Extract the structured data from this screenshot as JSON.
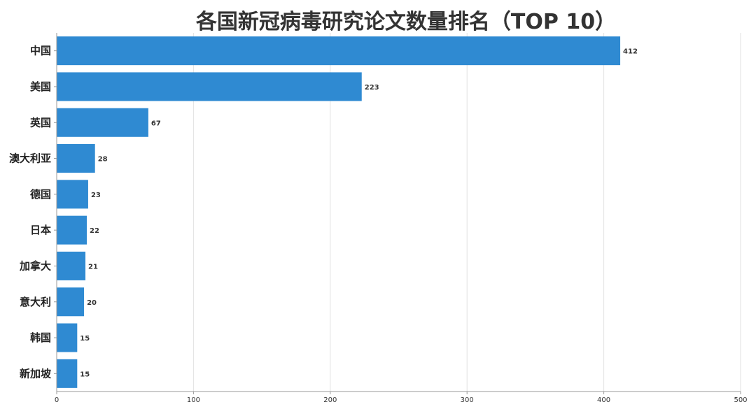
{
  "chart_data": {
    "type": "bar",
    "orientation": "horizontal",
    "title": "各国新冠病毒研究论文数量排名（TOP 10）",
    "categories": [
      "中国",
      "美国",
      "英国",
      "澳大利亚",
      "德国",
      "日本",
      "加拿大",
      "意大利",
      "韩国",
      "新加坡"
    ],
    "values": [
      412,
      223,
      67,
      28,
      23,
      22,
      21,
      20,
      15,
      15
    ],
    "value_labels": [
      "412",
      "223",
      "67",
      "28",
      "23",
      "22",
      "21",
      "20",
      "15",
      "15"
    ],
    "x_ticks": [
      "0",
      "100",
      "200",
      "300",
      "400",
      "500"
    ],
    "xlim": [
      0,
      500
    ],
    "xlabel": "",
    "ylabel": "",
    "grid": true,
    "bar_color": "#2f8ad2",
    "grid_color": "#e2e2e2",
    "axis_color": "#999999"
  }
}
